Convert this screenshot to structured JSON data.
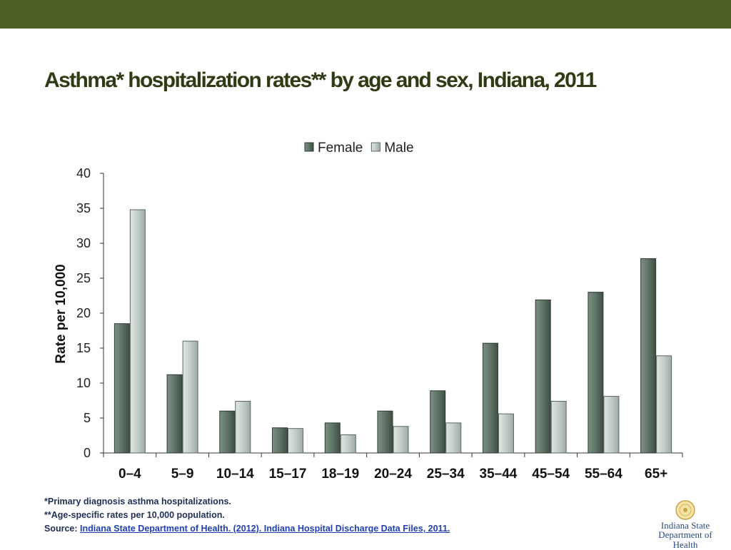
{
  "slide": {
    "title": "Asthma* hospitalization rates** by age and sex, Indiana, 2011",
    "footnote1": "*Primary diagnosis asthma hospitalizations.",
    "footnote2": "**Age-specific rates per 10,000 population.",
    "source_label": "Source:",
    "source_link": "Indiana State Department of Health. (2012). Indiana Hospital Discharge Data Files, 2011.",
    "logo_line1": "Indiana State",
    "logo_line2": "Department of Health",
    "colors": {
      "top_bar": "#4e5f27",
      "title": "#2f3b14",
      "female": "#5f7366",
      "male": "#c3cdc8"
    }
  },
  "chart_data": {
    "type": "bar",
    "title": "",
    "xlabel": "",
    "ylabel": "Rate per 10,000",
    "ylim": [
      0,
      40
    ],
    "yticks": [
      0,
      5,
      10,
      15,
      20,
      25,
      30,
      35,
      40
    ],
    "legend_position": "top",
    "categories": [
      "0–4",
      "5–9",
      "10–14",
      "15–17",
      "18–19",
      "20–24",
      "25–34",
      "35–44",
      "45–54",
      "55–64",
      "65+"
    ],
    "series": [
      {
        "name": "Female",
        "values": [
          18.5,
          11.2,
          6.0,
          3.6,
          4.3,
          6.0,
          8.9,
          15.7,
          21.9,
          23.0,
          27.8
        ]
      },
      {
        "name": "Male",
        "values": [
          34.8,
          16.0,
          7.4,
          3.5,
          2.6,
          3.8,
          4.3,
          5.6,
          7.4,
          8.1,
          13.9
        ]
      }
    ],
    "grid": false
  }
}
